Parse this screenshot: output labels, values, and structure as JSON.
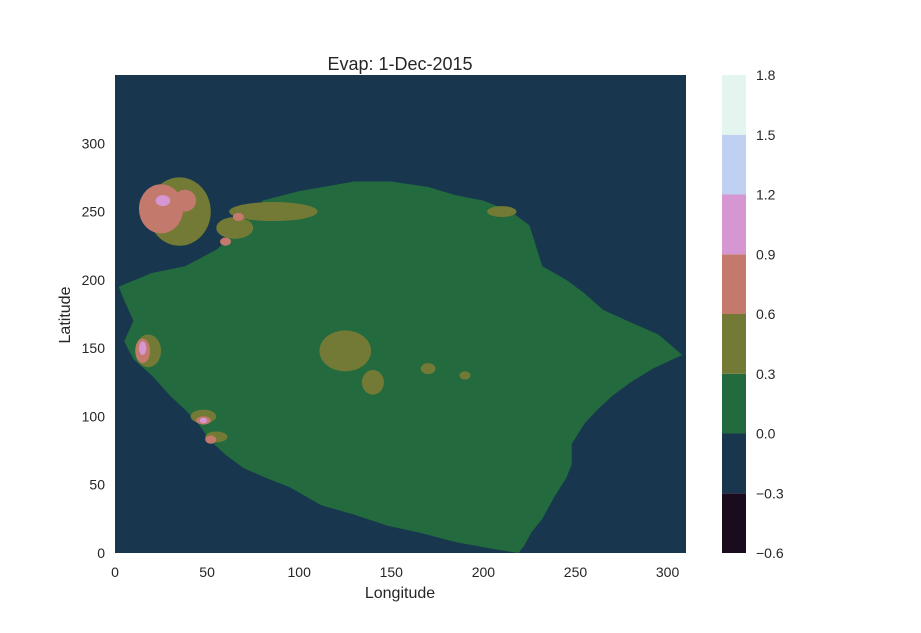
{
  "chart_data": {
    "type": "heatmap",
    "title": "Evap: 1-Dec-2015",
    "xlabel": "Longitude",
    "ylabel": "Latitude",
    "xlim": [
      0,
      310
    ],
    "ylim": [
      0,
      350
    ],
    "xticks": [
      0,
      50,
      100,
      150,
      200,
      250,
      300
    ],
    "yticks": [
      0,
      50,
      100,
      150,
      200,
      250,
      300
    ],
    "grid": false,
    "colorbar": {
      "levels": [
        -0.6,
        -0.3,
        0.0,
        0.3,
        0.6,
        0.9,
        1.2,
        1.5,
        1.8
      ],
      "tick_labels": [
        "−0.6",
        "−0.3",
        "0.0",
        "0.3",
        "0.6",
        "0.9",
        "1.2",
        "1.5",
        "1.8"
      ],
      "colors": [
        "#1a0c1e",
        "#18374e",
        "#236a3e",
        "#737a35",
        "#c37a6c",
        "#d596d2",
        "#c0d0f2",
        "#e3f5ee"
      ]
    },
    "background_value_band": "-0.3 to 0.0",
    "landmass": {
      "value_band": "0.0 to 0.3",
      "outline": [
        [
          2,
          195
        ],
        [
          20,
          205
        ],
        [
          38,
          210
        ],
        [
          55,
          222
        ],
        [
          70,
          240
        ],
        [
          80,
          258
        ],
        [
          100,
          265
        ],
        [
          130,
          272
        ],
        [
          150,
          272
        ],
        [
          170,
          268
        ],
        [
          185,
          262
        ],
        [
          200,
          258
        ],
        [
          215,
          250
        ],
        [
          225,
          240
        ],
        [
          232,
          210
        ],
        [
          245,
          200
        ],
        [
          255,
          190
        ],
        [
          265,
          178
        ],
        [
          278,
          170
        ],
        [
          295,
          160
        ],
        [
          308,
          145
        ],
        [
          300,
          140
        ],
        [
          292,
          135
        ],
        [
          280,
          125
        ],
        [
          270,
          115
        ],
        [
          262,
          105
        ],
        [
          255,
          95
        ],
        [
          248,
          80
        ],
        [
          248,
          65
        ],
        [
          245,
          55
        ],
        [
          238,
          40
        ],
        [
          232,
          25
        ],
        [
          226,
          15
        ],
        [
          222,
          5
        ],
        [
          219,
          0
        ],
        [
          205,
          3
        ],
        [
          185,
          8
        ],
        [
          165,
          15
        ],
        [
          148,
          20
        ],
        [
          130,
          28
        ],
        [
          112,
          35
        ],
        [
          95,
          48
        ],
        [
          82,
          55
        ],
        [
          70,
          62
        ],
        [
          60,
          72
        ],
        [
          52,
          82
        ],
        [
          45,
          95
        ],
        [
          38,
          105
        ],
        [
          30,
          115
        ],
        [
          20,
          130
        ],
        [
          10,
          142
        ],
        [
          5,
          155
        ],
        [
          10,
          170
        ],
        [
          5,
          185
        ]
      ]
    },
    "moderate_zones": {
      "value_band": "0.3 to 0.6",
      "regions": [
        {
          "cx": 35,
          "cy": 250,
          "rx": 17,
          "ry": 25
        },
        {
          "cx": 86,
          "cy": 250,
          "rx": 24,
          "ry": 7
        },
        {
          "cx": 125,
          "cy": 148,
          "rx": 14,
          "ry": 15
        },
        {
          "cx": 140,
          "cy": 125,
          "rx": 6,
          "ry": 9
        },
        {
          "cx": 65,
          "cy": 238,
          "rx": 10,
          "ry": 8
        },
        {
          "cx": 210,
          "cy": 250,
          "rx": 8,
          "ry": 4
        },
        {
          "cx": 48,
          "cy": 100,
          "rx": 7,
          "ry": 5
        },
        {
          "cx": 55,
          "cy": 85,
          "rx": 6,
          "ry": 4
        },
        {
          "cx": 18,
          "cy": 148,
          "rx": 7,
          "ry": 12
        },
        {
          "cx": 190,
          "cy": 130,
          "rx": 3,
          "ry": 3
        },
        {
          "cx": 170,
          "cy": 135,
          "rx": 4,
          "ry": 4
        }
      ]
    },
    "high_zones": {
      "value_band": "0.6 to 0.9",
      "regions": [
        {
          "cx": 25,
          "cy": 252,
          "rx": 12,
          "ry": 18
        },
        {
          "cx": 38,
          "cy": 258,
          "rx": 6,
          "ry": 8
        },
        {
          "cx": 15,
          "cy": 148,
          "rx": 4,
          "ry": 9
        },
        {
          "cx": 48,
          "cy": 97,
          "rx": 4,
          "ry": 3
        },
        {
          "cx": 52,
          "cy": 83,
          "rx": 3,
          "ry": 3
        },
        {
          "cx": 67,
          "cy": 246,
          "rx": 3,
          "ry": 3
        },
        {
          "cx": 60,
          "cy": 228,
          "rx": 3,
          "ry": 3
        }
      ]
    },
    "very_high_zones": {
      "value_band": "0.9 to 1.2",
      "regions": [
        {
          "cx": 15,
          "cy": 150,
          "rx": 2,
          "ry": 5
        },
        {
          "cx": 26,
          "cy": 258,
          "rx": 4,
          "ry": 4
        },
        {
          "cx": 48,
          "cy": 97,
          "rx": 2,
          "ry": 2
        }
      ]
    }
  }
}
